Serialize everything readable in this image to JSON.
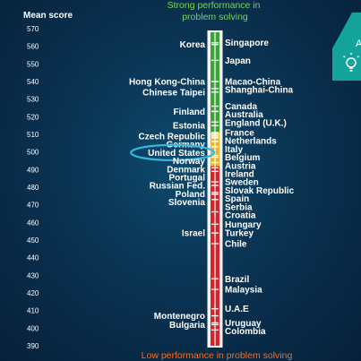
{
  "chart_data": {
    "type": "scatter",
    "ylabel": "Mean score",
    "ylim": [
      390,
      570
    ],
    "yticks": [
      390,
      400,
      410,
      420,
      430,
      440,
      450,
      460,
      470,
      480,
      490,
      500,
      510,
      520,
      530,
      540,
      550,
      560,
      570
    ],
    "top_label_lines": [
      "Strong performance in",
      "problem solving"
    ],
    "bottom_label": "Low performance in problem solving",
    "highlighted_country": "United States",
    "countries": [
      {
        "name": "Singapore",
        "score": 562,
        "side": "right"
      },
      {
        "name": "Korea",
        "score": 561,
        "side": "left"
      },
      {
        "name": "Japan",
        "score": 552,
        "side": "right"
      },
      {
        "name": "Macao-China",
        "score": 540,
        "side": "right"
      },
      {
        "name": "Hong Kong-China",
        "score": 540,
        "side": "left"
      },
      {
        "name": "Shanghai-China",
        "score": 536,
        "side": "right"
      },
      {
        "name": "Chinese Taipei",
        "score": 534,
        "side": "left"
      },
      {
        "name": "Canada",
        "score": 526,
        "side": "right"
      },
      {
        "name": "Australia",
        "score": 523,
        "side": "right"
      },
      {
        "name": "Finland",
        "score": 523,
        "side": "left"
      },
      {
        "name": "England (U.K.)",
        "score": 517,
        "side": "right"
      },
      {
        "name": "Estonia",
        "score": 515,
        "side": "left"
      },
      {
        "name": "France",
        "score": 511,
        "side": "right"
      },
      {
        "name": "Netherlands",
        "score": 511,
        "side": "right"
      },
      {
        "name": "Italy",
        "score": 510,
        "side": "right"
      },
      {
        "name": "Czech Republic",
        "score": 509,
        "side": "left"
      },
      {
        "name": "Germany",
        "score": 509,
        "side": "left"
      },
      {
        "name": "United States",
        "score": 508,
        "side": "left"
      },
      {
        "name": "Belgium",
        "score": 508,
        "side": "right"
      },
      {
        "name": "Austria",
        "score": 506,
        "side": "right"
      },
      {
        "name": "Norway",
        "score": 503,
        "side": "left"
      },
      {
        "name": "Ireland",
        "score": 498,
        "side": "right"
      },
      {
        "name": "Denmark",
        "score": 497,
        "side": "left"
      },
      {
        "name": "Portugal",
        "score": 494,
        "side": "left"
      },
      {
        "name": "Sweden",
        "score": 491,
        "side": "right"
      },
      {
        "name": "Russian Fed.",
        "score": 489,
        "side": "left"
      },
      {
        "name": "Slovak Republic",
        "score": 483,
        "side": "right"
      },
      {
        "name": "Poland",
        "score": 481,
        "side": "left"
      },
      {
        "name": "Spain",
        "score": 477,
        "side": "right"
      },
      {
        "name": "Slovenia",
        "score": 476,
        "side": "left"
      },
      {
        "name": "Serbia",
        "score": 473,
        "side": "right"
      },
      {
        "name": "Croatia",
        "score": 466,
        "side": "right"
      },
      {
        "name": "Hungary",
        "score": 459,
        "side": "right"
      },
      {
        "name": "Turkey",
        "score": 454,
        "side": "right"
      },
      {
        "name": "Israel",
        "score": 454,
        "side": "left"
      },
      {
        "name": "Chile",
        "score": 448,
        "side": "right"
      },
      {
        "name": "Brazil",
        "score": 428,
        "side": "right"
      },
      {
        "name": "Malaysia",
        "score": 422,
        "side": "right"
      },
      {
        "name": "U.A.E",
        "score": 411,
        "side": "right"
      },
      {
        "name": "Montenegro",
        "score": 407,
        "side": "left"
      },
      {
        "name": "Uruguay",
        "score": 403,
        "side": "right"
      },
      {
        "name": "Bulgaria",
        "score": 402,
        "side": "left"
      },
      {
        "name": "Colombia",
        "score": 399,
        "side": "right"
      }
    ],
    "bands": [
      {
        "from": 511,
        "to": 568,
        "color": "#3aa335"
      },
      {
        "from": 492,
        "to": 511,
        "color": "#e8b82a"
      },
      {
        "from": 390,
        "to": 492,
        "color": "#d8242a"
      }
    ]
  },
  "colors": {
    "band_label_top": "#6fdc4c",
    "band_label_bottom": "#ff6a1a",
    "highlight_ring": "#38b6e0",
    "panel": "#14a39a"
  },
  "side_panel": {
    "letter": "A",
    "icon": "lightbulb-icon"
  }
}
